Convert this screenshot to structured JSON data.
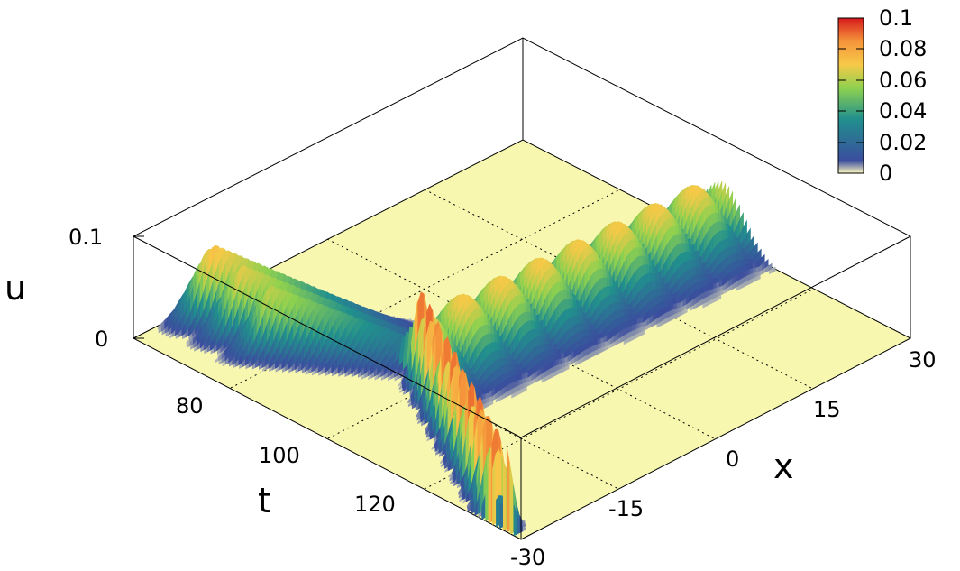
{
  "chart_data": {
    "type": "surface",
    "title": "",
    "xlabel": "x",
    "ylabel": "t",
    "zlabel": "u",
    "x_ticks": [
      "-30",
      "-15",
      "0",
      "15",
      "30"
    ],
    "t_ticks": [
      "80",
      "100",
      "120"
    ],
    "z_ticks": [
      "0",
      "0.1"
    ],
    "xlim": [
      -30,
      30
    ],
    "tlim": [
      60,
      140
    ],
    "zlim": [
      0,
      0.1
    ],
    "colorbar": {
      "ticks": [
        "0",
        "0.02",
        "0.04",
        "0.06",
        "0.08",
        "0.1"
      ],
      "range": [
        0,
        0.1
      ],
      "colors": [
        "#fdf9c0",
        "#3b4d9e",
        "#21908d",
        "#8fd14f",
        "#f7c948",
        "#f5953b",
        "#d7191c"
      ]
    },
    "base_color": "#f7f7b0",
    "grid": true,
    "series": [
      {
        "description": "solitary crests entering at upper-left",
        "t_center": 66,
        "x_center": -26,
        "amplitude": 0.078
      },
      {
        "description": "solitary crests",
        "t_center": 72,
        "x_center": -26,
        "amplitude": 0.07
      },
      {
        "description": "solitary crests",
        "t_center": 78,
        "x_center": -26,
        "amplitude": 0.065
      },
      {
        "description": "solitary crests",
        "t_center": 84,
        "x_center": -26,
        "amplitude": 0.06
      },
      {
        "description": "main wave train along x",
        "t_center": 103,
        "x_range": [
          -12,
          30
        ],
        "amplitude": 0.07
      },
      {
        "description": "narrow pulses near front",
        "t_center": 112,
        "x_center": -28,
        "amplitude": 0.09
      }
    ]
  }
}
